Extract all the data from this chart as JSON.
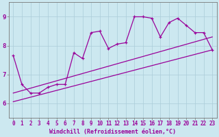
{
  "xlabel": "Windchill (Refroidissement éolien,°C)",
  "background_color": "#cce8f0",
  "plot_color": "#990099",
  "x_ticks": [
    0,
    1,
    2,
    3,
    4,
    5,
    6,
    7,
    8,
    9,
    10,
    11,
    12,
    13,
    14,
    15,
    16,
    17,
    18,
    19,
    20,
    21,
    22,
    23
  ],
  "y_ticks": [
    6,
    7,
    8,
    9
  ],
  "ylim": [
    5.5,
    9.5
  ],
  "xlim": [
    -0.5,
    23.5
  ],
  "line1_x": [
    0,
    1,
    2,
    3,
    4,
    5,
    6,
    7,
    8,
    9,
    10,
    11,
    12,
    13,
    14,
    15,
    16,
    17,
    18,
    19,
    20,
    21,
    22,
    23
  ],
  "line1_y": [
    7.65,
    6.65,
    6.35,
    6.35,
    6.55,
    6.65,
    6.65,
    7.75,
    7.55,
    8.45,
    8.5,
    7.9,
    8.05,
    8.1,
    9.0,
    9.0,
    8.95,
    8.3,
    8.8,
    8.95,
    8.7,
    8.45,
    8.45,
    7.85
  ],
  "line2_x": [
    0,
    23
  ],
  "line2_y": [
    6.05,
    7.85
  ],
  "line3_x": [
    0,
    23
  ],
  "line3_y": [
    6.35,
    8.3
  ],
  "grid_color": "#aaccd8",
  "tick_fontsize": 5.5,
  "xlabel_fontsize": 6.0
}
